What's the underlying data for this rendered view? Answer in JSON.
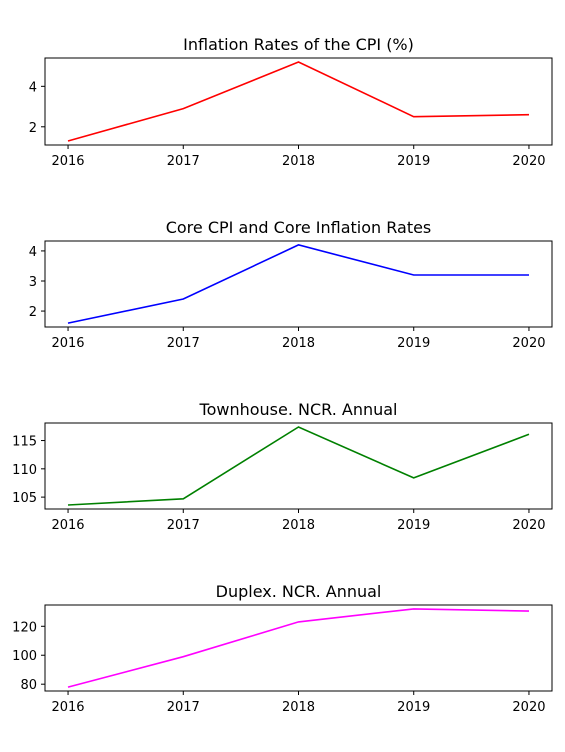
{
  "chart_data": [
    {
      "type": "line",
      "title": "Inflation Rates of the CPI (%)",
      "x": [
        2016,
        2017,
        2018,
        2019,
        2020
      ],
      "series": [
        {
          "values": [
            1.3,
            2.9,
            5.2,
            2.5,
            2.6
          ],
          "color": "#ff0000"
        }
      ],
      "xticks": [
        "2016",
        "2017",
        "2018",
        "2019",
        "2020"
      ],
      "yticks": [
        2,
        4
      ],
      "ylim": [
        1.1,
        5.4
      ],
      "grid": false
    },
    {
      "type": "line",
      "title": "Core CPI and Core Inflation Rates",
      "x": [
        2016,
        2017,
        2018,
        2019,
        2020
      ],
      "series": [
        {
          "values": [
            1.6,
            2.4,
            4.2,
            3.2,
            3.2
          ],
          "color": "#0000ff"
        }
      ],
      "xticks": [
        "2016",
        "2017",
        "2018",
        "2019",
        "2020"
      ],
      "yticks": [
        2,
        3,
        4
      ],
      "ylim": [
        1.47,
        4.33
      ],
      "grid": false
    },
    {
      "type": "line",
      "title": "Townhouse. NCR. Annual",
      "x": [
        2016,
        2017,
        2018,
        2019,
        2020
      ],
      "series": [
        {
          "values": [
            103.6,
            104.7,
            117.4,
            108.4,
            116.1
          ],
          "color": "#008000"
        }
      ],
      "xticks": [
        "2016",
        "2017",
        "2018",
        "2019",
        "2020"
      ],
      "yticks": [
        105,
        110,
        115
      ],
      "ylim": [
        102.9,
        118.1
      ],
      "grid": false
    },
    {
      "type": "line",
      "title": "Duplex. NCR. Annual",
      "x": [
        2016,
        2017,
        2018,
        2019,
        2020
      ],
      "series": [
        {
          "values": [
            78.0,
            99.0,
            123.0,
            132.0,
            130.5
          ],
          "color": "#ff00ff"
        }
      ],
      "xticks": [
        "2016",
        "2017",
        "2018",
        "2019",
        "2020"
      ],
      "yticks": [
        80,
        100,
        120
      ],
      "ylim": [
        75.3,
        134.7
      ],
      "grid": false
    }
  ]
}
